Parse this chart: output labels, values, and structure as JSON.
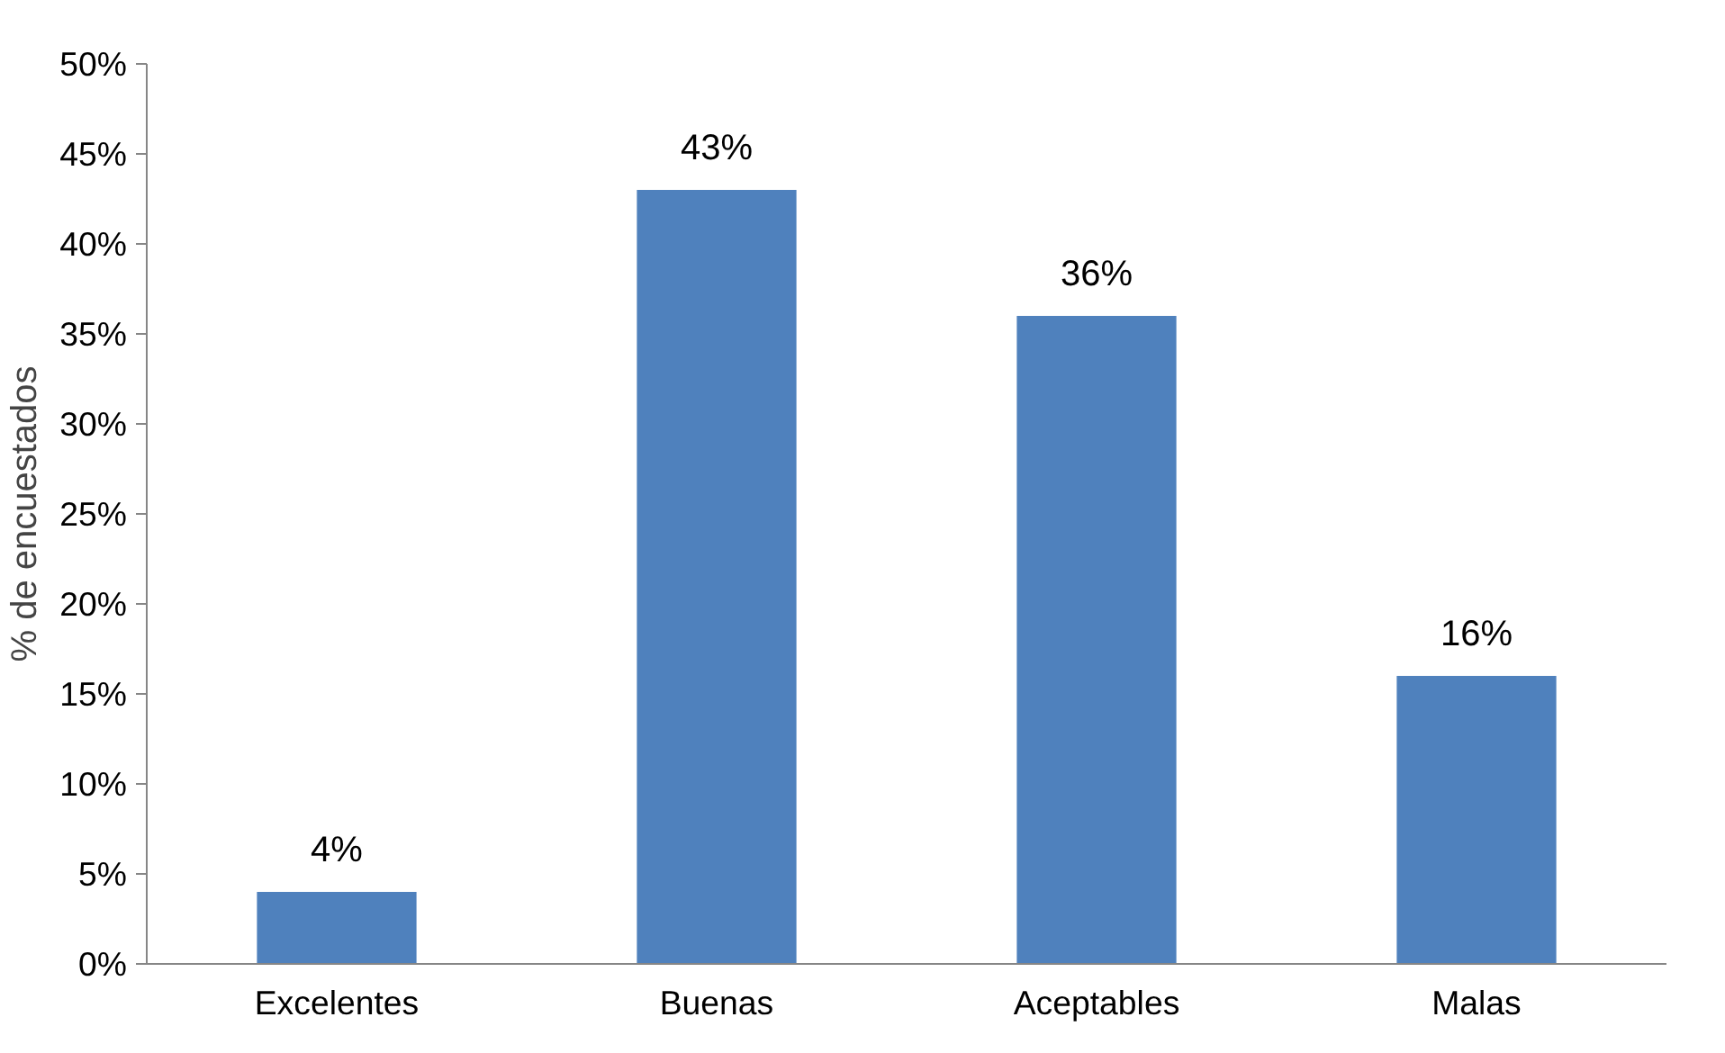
{
  "chart_data": {
    "type": "bar",
    "ylabel": "% de encuestados",
    "categories": [
      "Excelentes",
      "Buenas",
      "Aceptables",
      "Malas"
    ],
    "values": [
      4,
      43,
      36,
      16
    ],
    "value_labels": [
      "4%",
      "43%",
      "36%",
      "16%"
    ],
    "color": "#4f81bd",
    "ylim": [
      0,
      50
    ],
    "yticks": [
      {
        "value": 0,
        "label": "0%"
      },
      {
        "value": 5,
        "label": "5%"
      },
      {
        "value": 10,
        "label": "10%"
      },
      {
        "value": 15,
        "label": "15%"
      },
      {
        "value": 20,
        "label": "20%"
      },
      {
        "value": 25,
        "label": "25%"
      },
      {
        "value": 30,
        "label": "30%"
      },
      {
        "value": 35,
        "label": "35%"
      },
      {
        "value": 40,
        "label": "40%"
      },
      {
        "value": 45,
        "label": "45%"
      },
      {
        "value": 50,
        "label": "50%"
      }
    ],
    "grid": false
  }
}
